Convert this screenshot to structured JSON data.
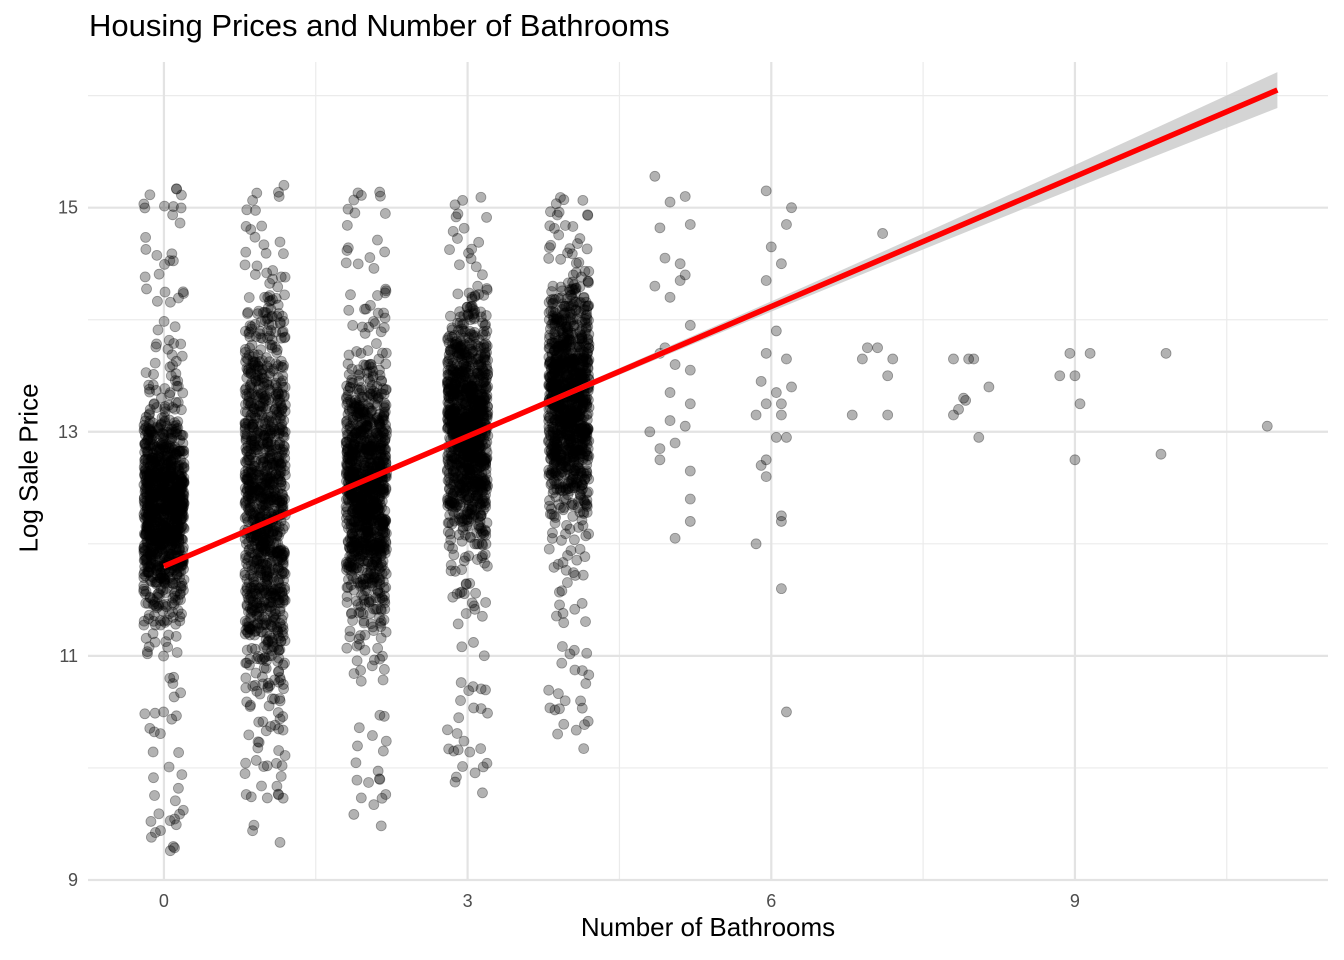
{
  "chart_data": {
    "type": "scatter",
    "title": "Housing Prices and Number of Bathrooms",
    "xlabel": "Number of Bathrooms",
    "ylabel": "Log Sale Price",
    "xlim": [
      -0.75,
      11.5
    ],
    "ylim": [
      9.0,
      16.3
    ],
    "x_ticks": [
      0,
      3,
      6,
      9
    ],
    "y_ticks": [
      9,
      11,
      13,
      15
    ],
    "grid": true,
    "point_color": "#000000",
    "point_alpha": 0.3,
    "line_color": "#ff0000",
    "band_color": "#cccccc",
    "dense_columns": [
      {
        "x": 0,
        "y_range": [
          9.25,
          15.2
        ],
        "core_range": [
          10.8,
          13.8
        ]
      },
      {
        "x": 1,
        "y_range": [
          9.25,
          15.2
        ],
        "core_range": [
          9.6,
          15.2
        ]
      },
      {
        "x": 2,
        "y_range": [
          9.4,
          15.2
        ],
        "core_range": [
          10.8,
          14.2
        ]
      },
      {
        "x": 3,
        "y_range": [
          9.7,
          15.15
        ],
        "core_range": [
          11.4,
          14.7
        ]
      },
      {
        "x": 4,
        "y_range": [
          10.1,
          15.15
        ],
        "core_range": [
          11.7,
          14.9
        ]
      }
    ],
    "points": [
      [
        4.85,
        15.28
      ],
      [
        5.0,
        15.05
      ],
      [
        5.15,
        15.1
      ],
      [
        4.9,
        14.82
      ],
      [
        5.2,
        14.85
      ],
      [
        4.85,
        14.3
      ],
      [
        5.15,
        14.4
      ],
      [
        4.95,
        14.55
      ],
      [
        5.1,
        14.5
      ],
      [
        5.0,
        14.2
      ],
      [
        5.2,
        13.95
      ],
      [
        4.9,
        13.7
      ],
      [
        5.05,
        13.6
      ],
      [
        5.2,
        13.55
      ],
      [
        5.0,
        13.35
      ],
      [
        5.2,
        13.25
      ],
      [
        5.0,
        13.1
      ],
      [
        5.15,
        13.05
      ],
      [
        4.8,
        13.0
      ],
      [
        4.9,
        12.85
      ],
      [
        4.9,
        12.75
      ],
      [
        5.05,
        12.9
      ],
      [
        5.2,
        12.65
      ],
      [
        5.2,
        12.4
      ],
      [
        5.2,
        12.2
      ],
      [
        5.05,
        12.05
      ],
      [
        4.95,
        13.75
      ],
      [
        5.1,
        14.35
      ],
      [
        5.95,
        15.15
      ],
      [
        6.2,
        15.0
      ],
      [
        6.15,
        14.85
      ],
      [
        6.0,
        14.65
      ],
      [
        6.1,
        14.5
      ],
      [
        5.95,
        14.35
      ],
      [
        6.05,
        13.9
      ],
      [
        5.9,
        13.45
      ],
      [
        6.15,
        13.65
      ],
      [
        5.95,
        13.7
      ],
      [
        6.05,
        13.35
      ],
      [
        6.2,
        13.4
      ],
      [
        5.95,
        13.25
      ],
      [
        6.1,
        13.25
      ],
      [
        5.85,
        13.15
      ],
      [
        6.1,
        13.15
      ],
      [
        6.05,
        12.95
      ],
      [
        6.15,
        12.95
      ],
      [
        5.95,
        12.75
      ],
      [
        5.9,
        12.7
      ],
      [
        5.95,
        12.6
      ],
      [
        6.1,
        12.25
      ],
      [
        6.1,
        12.2
      ],
      [
        5.85,
        12.0
      ],
      [
        6.1,
        11.6
      ],
      [
        6.15,
        10.5
      ],
      [
        6.8,
        13.15
      ],
      [
        6.9,
        13.65
      ],
      [
        6.95,
        13.75
      ],
      [
        7.05,
        13.75
      ],
      [
        7.1,
        14.77
      ],
      [
        7.15,
        13.5
      ],
      [
        7.2,
        13.65
      ],
      [
        7.15,
        13.15
      ],
      [
        7.8,
        13.65
      ],
      [
        7.8,
        13.15
      ],
      [
        7.85,
        13.2
      ],
      [
        7.9,
        13.3
      ],
      [
        7.95,
        13.65
      ],
      [
        8.0,
        13.65
      ],
      [
        8.05,
        12.95
      ],
      [
        8.15,
        13.4
      ],
      [
        7.92,
        13.28
      ],
      [
        8.85,
        13.5
      ],
      [
        8.95,
        13.7
      ],
      [
        9.0,
        13.5
      ],
      [
        9.0,
        12.75
      ],
      [
        9.05,
        13.25
      ],
      [
        9.15,
        13.7
      ],
      [
        9.85,
        12.8
      ],
      [
        9.9,
        13.7
      ],
      [
        10.9,
        13.05
      ]
    ],
    "fit_line": {
      "x": [
        0,
        11
      ],
      "y": [
        11.8,
        16.05
      ]
    }
  }
}
